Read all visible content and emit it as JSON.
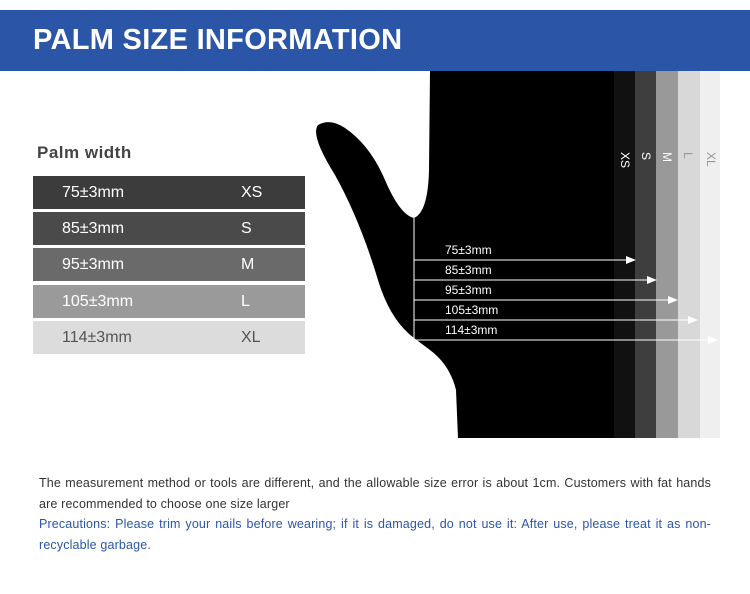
{
  "header": {
    "title": "PALM SIZE INFORMATION",
    "color": "#2b56a8"
  },
  "table": {
    "title": "Palm width",
    "rows": [
      {
        "value": "75±3mm",
        "size": "XS",
        "color": "#3c3c3c"
      },
      {
        "value": "85±3mm",
        "size": "S",
        "color": "#4a4a4a"
      },
      {
        "value": "95±3mm",
        "size": "M",
        "color": "#6a6a6a"
      },
      {
        "value": "105±3mm",
        "size": "L",
        "color": "#9a9a9a"
      },
      {
        "value": "114±3mm",
        "size": "XL",
        "color": "#dcdcdc"
      }
    ]
  },
  "diagram": {
    "labels": [
      "75±3mm",
      "85±3mm",
      "95±3mm",
      "105±3mm",
      "114±3mm"
    ],
    "bands": [
      "XS",
      "S",
      "M",
      "L",
      "XL"
    ]
  },
  "notes": {
    "text": "The measurement method or tools are different, and the allowable size error is about 1cm. Customers with fat hands are recommended to choose one size larger",
    "precautions": "Precautions: Please trim your nails before wearing; if it is damaged, do not use it: After use, please treat it as non-recyclable garbage."
  }
}
